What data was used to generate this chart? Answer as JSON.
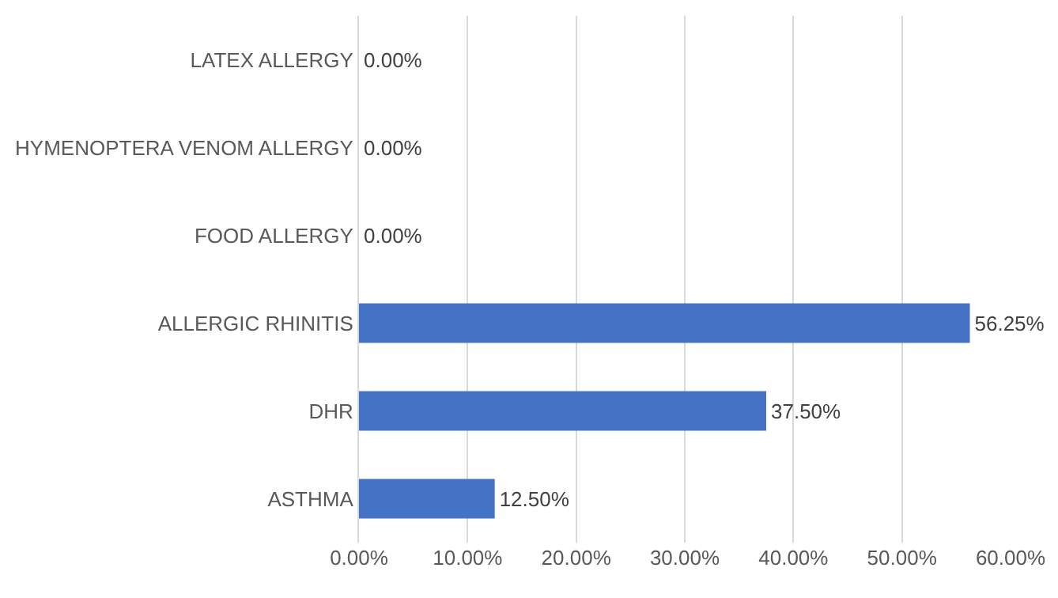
{
  "chart_data": {
    "type": "bar",
    "orientation": "horizontal",
    "categories": [
      "LATEX ALLERGY",
      "HYMENOPTERA VENOM ALLERGY",
      "FOOD ALLERGY",
      "ALLERGIC RHINITIS",
      "DHR",
      "ASTHMA"
    ],
    "values": [
      0,
      0,
      0,
      56.25,
      37.5,
      12.5
    ],
    "value_labels": [
      "0.00%",
      "0.00%",
      "0.00%",
      "56.25%",
      "37.50%",
      "12.50%"
    ],
    "color": "#4472c4",
    "xlim": [
      0,
      60
    ],
    "xticks": [
      {
        "value": 0,
        "label": "0.00%"
      },
      {
        "value": 10,
        "label": "10.00%"
      },
      {
        "value": 20,
        "label": "20.00%"
      },
      {
        "value": 30,
        "label": "30.00%"
      },
      {
        "value": 40,
        "label": "40.00%"
      },
      {
        "value": 50,
        "label": "50.00%"
      },
      {
        "value": 60,
        "label": "60.00%"
      }
    ],
    "grid": "x"
  }
}
